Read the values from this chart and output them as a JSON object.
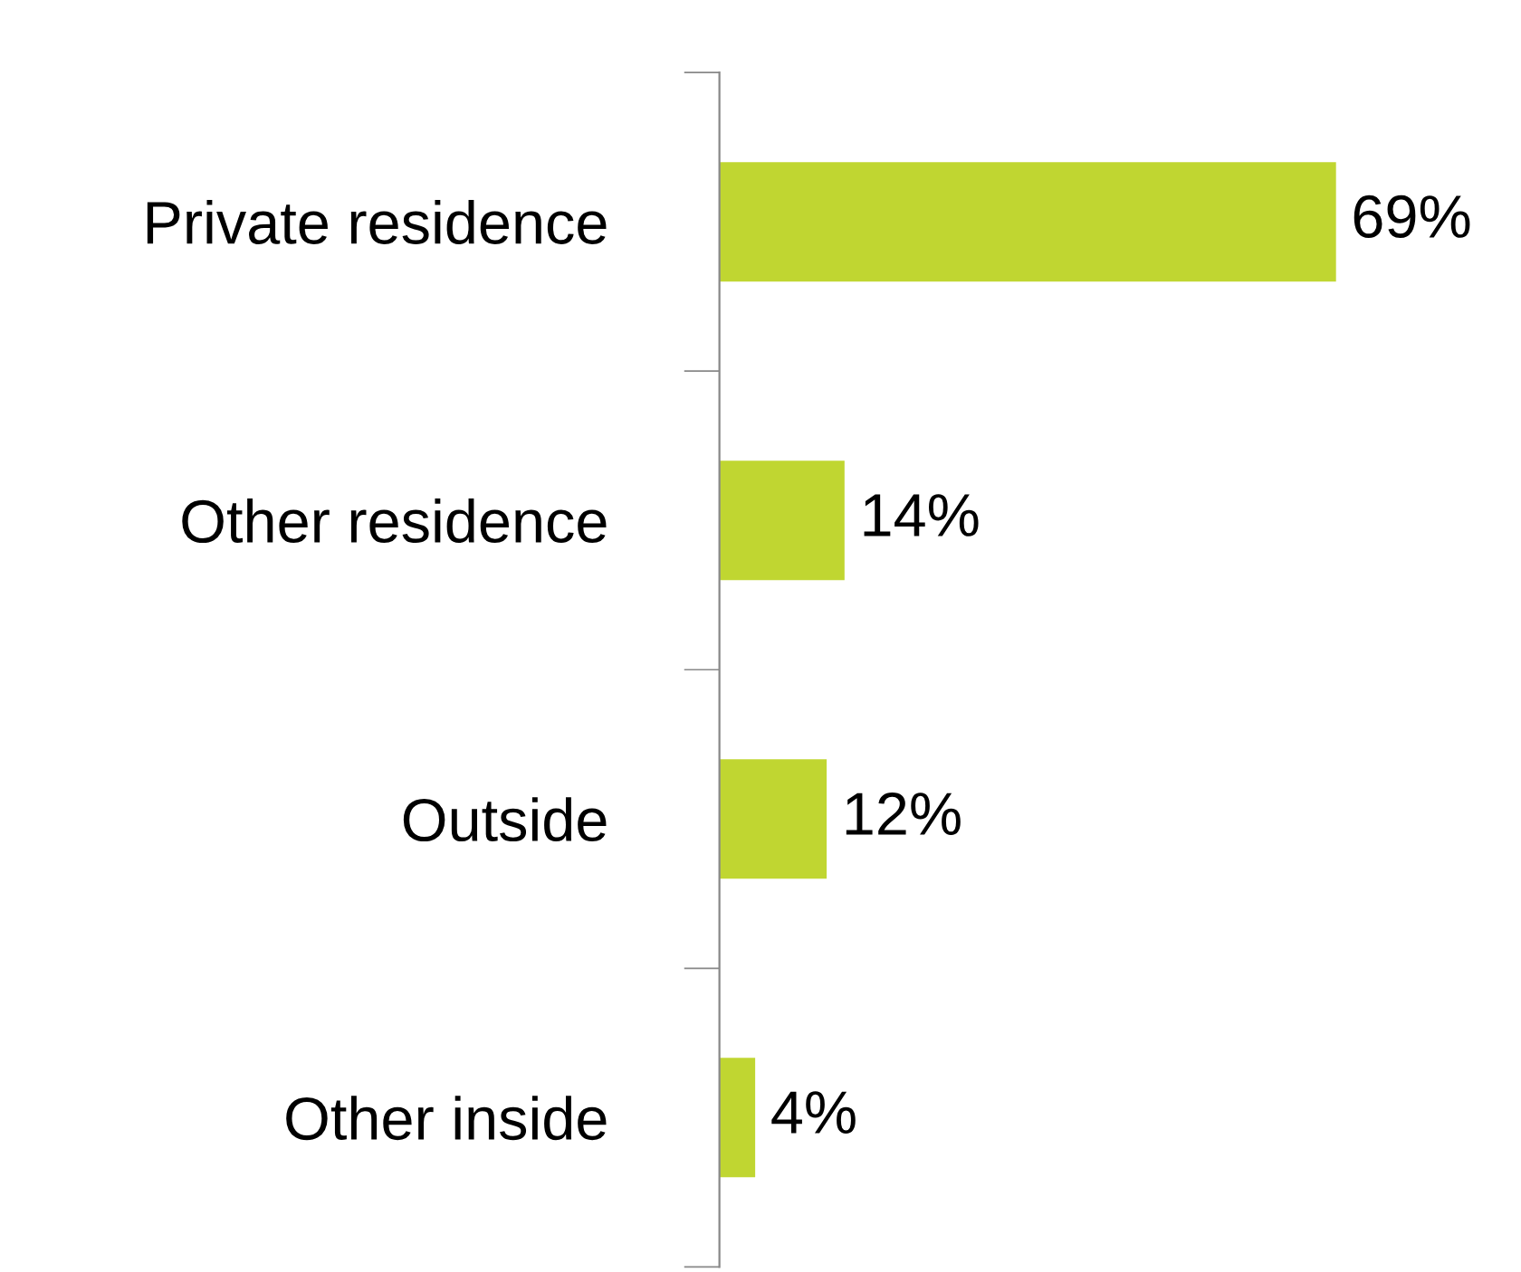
{
  "chart_data": {
    "type": "bar",
    "orientation": "horizontal",
    "categories": [
      "Private residence",
      "Other residence",
      "Outside",
      "Other inside"
    ],
    "values": [
      69,
      14,
      12,
      4
    ],
    "value_labels": [
      "69%",
      "14%",
      "12%",
      "4%"
    ],
    "color": "#c0d631",
    "grid": false,
    "legend": false
  }
}
